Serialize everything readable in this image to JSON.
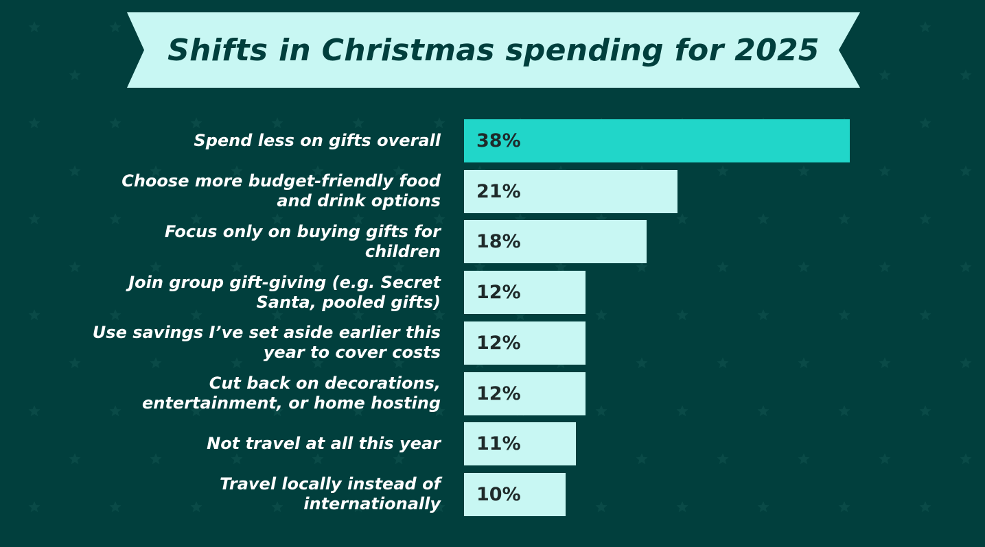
{
  "colors": {
    "background": "#013f3d",
    "banner": "#c8f7f3",
    "highlight_bar": "#21d6c9",
    "bar": "#c8f7f3",
    "label_text": "#ffffff",
    "value_text": "#1f2a2a"
  },
  "chart_data": {
    "type": "bar",
    "orientation": "horizontal",
    "title": "Shifts in Christmas spending for 2025",
    "xlabel": "",
    "ylabel": "",
    "xlim": [
      0,
      38
    ],
    "categories": [
      "Spend less on gifts overall",
      "Choose more budget-friendly food and drink options",
      "Focus only on buying gifts for children",
      "Join group gift-giving (e.g. Secret Santa, pooled gifts)",
      "Use savings I’ve set aside earlier this year to cover costs",
      "Cut back on decorations, entertainment, or home hosting",
      "Not travel at all this year",
      "Travel locally instead of internationally"
    ],
    "values": [
      38,
      21,
      18,
      12,
      12,
      12,
      11,
      10
    ],
    "value_labels": [
      "38%",
      "21%",
      "18%",
      "12%",
      "12%",
      "12%",
      "11%",
      "10%"
    ],
    "highlight_index": 0
  }
}
